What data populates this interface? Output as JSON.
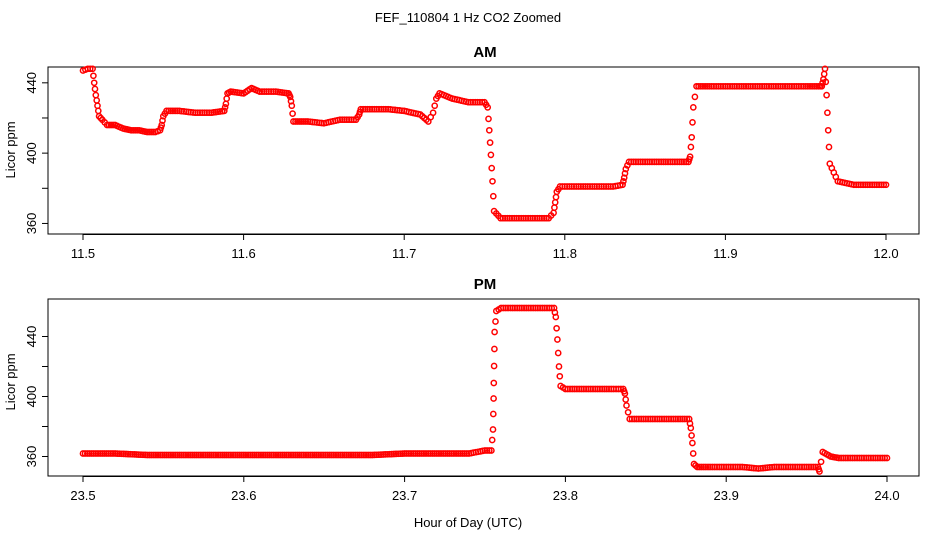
{
  "figure": {
    "title": "FEF_110804  1 Hz CO2 Zoomed",
    "xlabel": "Hour of Day (UTC)",
    "point_color": "#ff0000"
  },
  "chart_data": [
    {
      "type": "scatter",
      "title": "AM",
      "xlabel": "",
      "ylabel": "Licor ppm",
      "xlim": [
        11.5,
        12.0
      ],
      "ylim": [
        354,
        449
      ],
      "xticks": [
        "11.5",
        "11.6",
        "11.7",
        "11.8",
        "11.9",
        "12.0"
      ],
      "xtick_values": [
        11.5,
        11.6,
        11.7,
        11.8,
        11.9,
        12.0
      ],
      "yticks": [
        "360",
        "400",
        "440"
      ],
      "ytick_values": [
        360,
        400,
        440
      ],
      "y_minor_ticks": [
        380,
        420
      ],
      "series": [
        {
          "x": [
            11.5,
            11.503,
            11.506,
            11.507,
            11.508,
            11.509,
            11.51,
            11.512,
            11.515,
            11.52,
            11.525,
            11.53,
            11.535,
            11.54,
            11.545,
            11.548,
            11.549,
            11.55,
            11.552,
            11.56,
            11.57,
            11.58,
            11.588,
            11.589,
            11.59,
            11.592,
            11.6,
            11.605,
            11.61,
            11.62,
            11.628,
            11.629,
            11.63,
            11.631,
            11.64,
            11.65,
            11.66,
            11.67,
            11.672,
            11.673,
            11.68,
            11.69,
            11.7,
            11.71,
            11.715,
            11.718,
            11.72,
            11.722,
            11.73,
            11.74,
            11.75,
            11.752,
            11.753,
            11.754,
            11.755,
            11.756,
            11.76,
            11.77,
            11.78,
            11.79,
            11.793,
            11.794,
            11.795,
            11.797,
            11.8,
            11.81,
            11.82,
            11.83,
            11.836,
            11.837,
            11.838,
            11.84,
            11.85,
            11.86,
            11.87,
            11.877,
            11.878,
            11.879,
            11.88,
            11.882,
            11.89,
            11.9,
            11.91,
            11.92,
            11.93,
            11.94,
            11.95,
            11.958,
            11.96,
            11.961,
            11.962,
            11.963,
            11.964,
            11.965,
            11.97,
            11.98,
            11.99,
            12.0
          ],
          "y": [
            447,
            448,
            448,
            440,
            433,
            427,
            421,
            419,
            416,
            416,
            414,
            413,
            413,
            412,
            412,
            413,
            416,
            421,
            424,
            424,
            423,
            423,
            424,
            428,
            434,
            435,
            434,
            437,
            435,
            435,
            434,
            432,
            427,
            418,
            418,
            417,
            419,
            419,
            422,
            425,
            425,
            425,
            424,
            422,
            418,
            423,
            431,
            434,
            431,
            429,
            429,
            426,
            413,
            399,
            384,
            367,
            363,
            363,
            363,
            363,
            366,
            372,
            378,
            381,
            381,
            381,
            381,
            381,
            382,
            386,
            391,
            395,
            395,
            395,
            395,
            395,
            398,
            409,
            426,
            438,
            438,
            438,
            438,
            438,
            438,
            438,
            438,
            438,
            438,
            442,
            448,
            433,
            413,
            394,
            384,
            382,
            382,
            382
          ]
        }
      ]
    },
    {
      "type": "scatter",
      "title": "PM",
      "xlabel": "",
      "ylabel": "Licor ppm",
      "xlim": [
        23.5,
        24.0
      ],
      "ylim": [
        347,
        465
      ],
      "xticks": [
        "23.5",
        "23.6",
        "23.7",
        "23.8",
        "23.9",
        "24.0"
      ],
      "xtick_values": [
        23.5,
        23.6,
        23.7,
        23.8,
        23.9,
        24.0
      ],
      "yticks": [
        "360",
        "400",
        "440"
      ],
      "ytick_values": [
        360,
        400,
        440
      ],
      "y_minor_ticks": [
        380,
        420
      ],
      "series": [
        {
          "x": [
            23.5,
            23.52,
            23.54,
            23.56,
            23.58,
            23.6,
            23.62,
            23.64,
            23.66,
            23.68,
            23.7,
            23.72,
            23.74,
            23.75,
            23.754,
            23.755,
            23.7555,
            23.756,
            23.757,
            23.76,
            23.77,
            23.78,
            23.79,
            23.793,
            23.794,
            23.795,
            23.796,
            23.797,
            23.8,
            23.81,
            23.82,
            23.83,
            23.836,
            23.837,
            23.838,
            23.84,
            23.85,
            23.86,
            23.87,
            23.877,
            23.878,
            23.879,
            23.88,
            23.882,
            23.89,
            23.9,
            23.91,
            23.92,
            23.93,
            23.94,
            23.95,
            23.957,
            23.958,
            23.96,
            23.965,
            23.97,
            23.98,
            23.99,
            24.0
          ],
          "y": [
            362,
            362,
            361,
            361,
            361,
            361,
            361,
            361,
            361,
            361,
            362,
            362,
            362,
            364,
            364,
            378,
            409,
            443,
            457,
            459,
            459,
            459,
            459,
            459,
            453,
            438,
            420,
            407,
            405,
            405,
            405,
            405,
            405,
            402,
            394,
            385,
            385,
            385,
            385,
            385,
            379,
            369,
            355,
            353,
            353,
            353,
            353,
            352,
            353,
            353,
            353,
            353,
            350,
            363,
            360,
            359,
            359,
            359,
            359
          ]
        }
      ]
    }
  ]
}
